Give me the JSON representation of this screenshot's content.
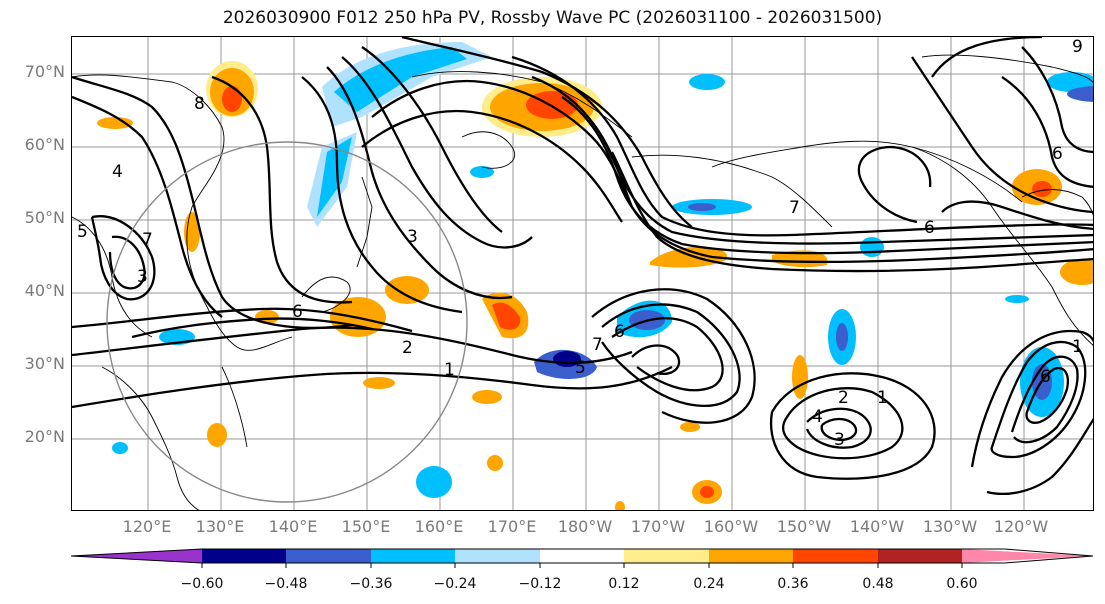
{
  "title": "2026030900 F012 250 hPa PV, Rossby Wave PC (2026031100 - 2026031500)",
  "lat_labels": [
    "70°N",
    "60°N",
    "50°N",
    "40°N",
    "30°N",
    "20°N"
  ],
  "lon_labels": [
    "120°E",
    "130°E",
    "140°E",
    "150°E",
    "160°E",
    "170°E",
    "180°W",
    "170°W",
    "160°W",
    "150°W",
    "140°W",
    "130°W",
    "120°W"
  ],
  "contour_labels": [
    "8",
    "4",
    "5",
    "7",
    "3",
    "2",
    "1",
    "6",
    "7",
    "6",
    "3",
    "6",
    "9",
    "5",
    "6",
    "7",
    "2",
    "1",
    "4",
    "3",
    "6",
    "1"
  ],
  "colorbar": {
    "ticks": [
      "−0.60",
      "−0.48",
      "−0.36",
      "−0.24",
      "−0.12",
      "0.12",
      "0.24",
      "0.36",
      "0.48",
      "0.60"
    ],
    "colors": [
      "#9933cc",
      "#00008b",
      "#3a5fcd",
      "#00bfff",
      "#b0e2ff",
      "#ffffff",
      "#ffec8b",
      "#ffa500",
      "#ff4500",
      "#b22222",
      "#ff88aa"
    ]
  }
}
